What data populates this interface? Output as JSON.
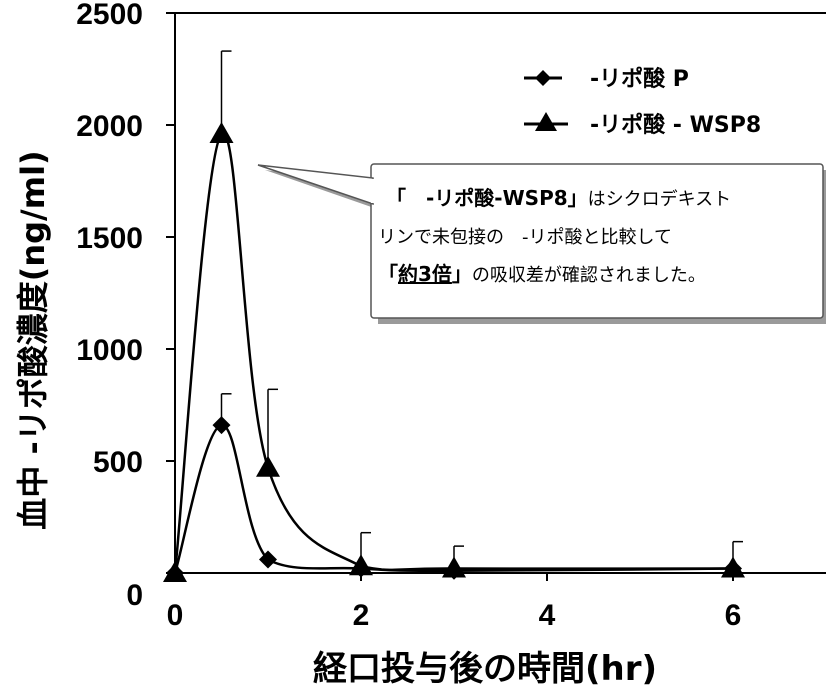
{
  "chart_data": {
    "type": "line",
    "title": "",
    "xlabel": "経口投与後の時間(hr)",
    "ylabel": "血中 -リポ酸濃度(ng/ml)",
    "xlim": [
      0,
      7
    ],
    "ylim": [
      0,
      2500
    ],
    "xticks": [
      "0",
      "2",
      "4",
      "6"
    ],
    "yticks": [
      "0",
      "500",
      "1000",
      "1500",
      "2000",
      "2500"
    ],
    "series": [
      {
        "name": "-リポ酸 P",
        "marker": "diamond",
        "color": "#000000",
        "x": [
          0,
          0.5,
          1,
          2,
          3,
          6
        ],
        "y": [
          0,
          660,
          60,
          20,
          10,
          20
        ],
        "error_upper": [
          0,
          800,
          60,
          20,
          10,
          20
        ]
      },
      {
        "name": "-リポ酸 - WSP8",
        "marker": "triangle",
        "color": "#000000",
        "x": [
          0,
          0.5,
          1,
          2,
          3,
          6
        ],
        "y": [
          0,
          1960,
          470,
          30,
          20,
          20
        ],
        "error_upper": [
          0,
          2330,
          820,
          180,
          120,
          140
        ]
      }
    ],
    "legend": {
      "position": "top-right",
      "items": [
        "-リポ酸 P",
        "-リポ酸 - WSP8"
      ]
    },
    "annotation": {
      "line1_bold": "「　-リポ酸-WSP8」",
      "line1_rest": "はシクロデキスト",
      "line2": "リンで未包接の　-リポ酸と比較して",
      "line3_open": "「",
      "line3_underline": "約3倍",
      "line3_close": "」",
      "line3_rest": "の吸収差が確認されました。"
    }
  }
}
